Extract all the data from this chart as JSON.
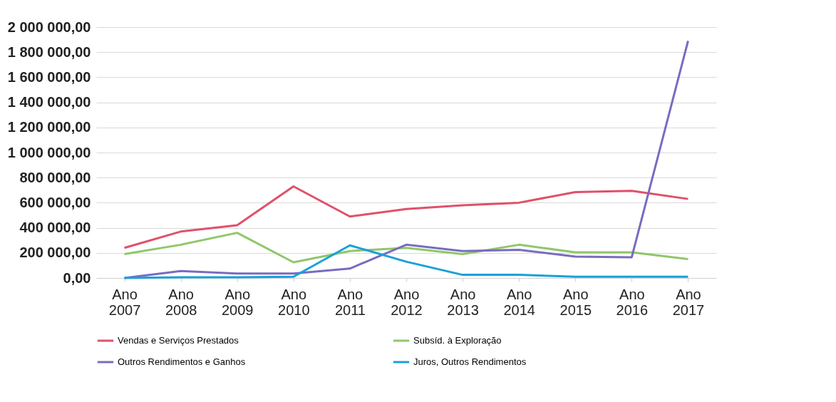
{
  "chart_data": {
    "type": "line",
    "categories": [
      "Ano 2007",
      "Ano 2008",
      "Ano 2009",
      "Ano 2010",
      "Ano 2011",
      "Ano 2012",
      "Ano 2013",
      "Ano 2014",
      "Ano 2015",
      "Ano 2016",
      "Ano 2017"
    ],
    "series": [
      {
        "name": "Vendas e Serviços Prestados",
        "color": "#e0506a",
        "values": [
          240000,
          370000,
          420000,
          730000,
          490000,
          550000,
          580000,
          600000,
          685000,
          695000,
          630000
        ]
      },
      {
        "name": "Subsíd. à Exploração",
        "color": "#8fc76a",
        "values": [
          190000,
          265000,
          360000,
          125000,
          215000,
          240000,
          190000,
          265000,
          205000,
          205000,
          150000
        ]
      },
      {
        "name": "Outros Rendimentos e Ganhos",
        "color": "#7a6bc0",
        "values": [
          0,
          55000,
          35000,
          35000,
          75000,
          265000,
          215000,
          225000,
          170000,
          165000,
          1890000
        ]
      },
      {
        "name": "Juros, Outros Rendimentos",
        "color": "#1aa0d8",
        "values": [
          0,
          5000,
          5000,
          10000,
          260000,
          130000,
          25000,
          25000,
          10000,
          10000,
          10000
        ]
      }
    ],
    "ylim": [
      0,
      2000000
    ],
    "yticks": [
      {
        "value": 0,
        "label": "0,00"
      },
      {
        "value": 200000,
        "label": "200 000,00"
      },
      {
        "value": 400000,
        "label": "400 000,00"
      },
      {
        "value": 600000,
        "label": "600 000,00"
      },
      {
        "value": 800000,
        "label": "800 000,00"
      },
      {
        "value": 1000000,
        "label": "1 000 000,00"
      },
      {
        "value": 1200000,
        "label": "1 200 000,00"
      },
      {
        "value": 1400000,
        "label": "1 400 000,00"
      },
      {
        "value": 1600000,
        "label": "1 600 000,00"
      },
      {
        "value": 1800000,
        "label": "1 800 000,00"
      },
      {
        "value": 2000000,
        "label": "2 000 000,00"
      }
    ],
    "grid": "y",
    "legend": "bottom",
    "marker": "none",
    "line_style": "solid"
  }
}
